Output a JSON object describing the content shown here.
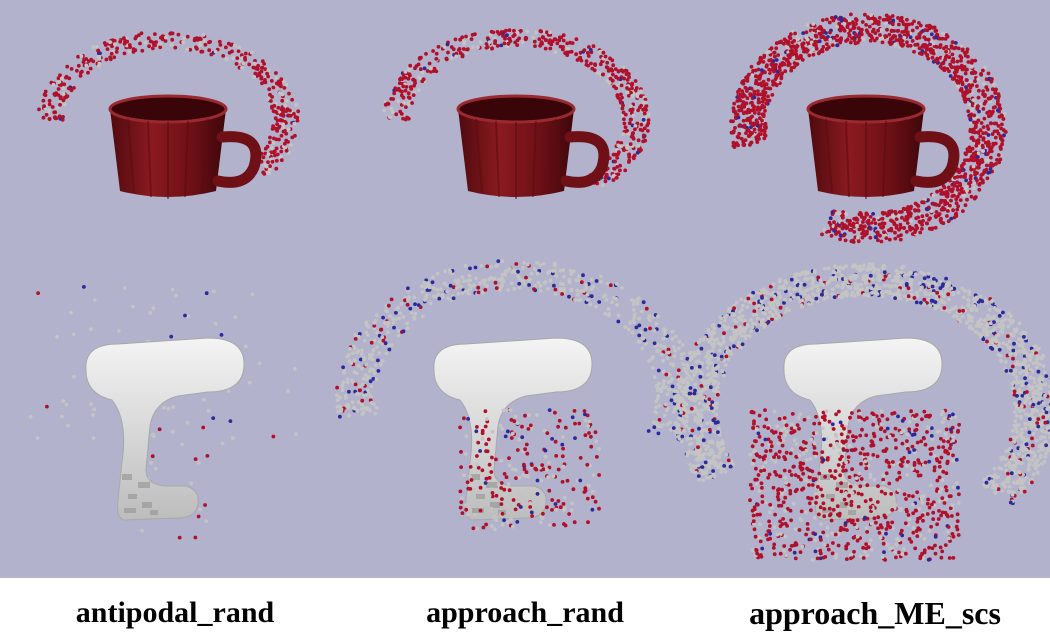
{
  "background_color": "#b2b2cc",
  "colors": {
    "red_points": "#b0102a",
    "gray_points": "#c4c4c4",
    "blue_points": "#2a2a9a",
    "mug": "#7a1218",
    "drill": "#e6e6e6"
  },
  "columns": [
    {
      "label": "antipodal_rand",
      "top_object": "mug",
      "bottom_object": "drill"
    },
    {
      "label": "approach_rand",
      "top_object": "mug",
      "bottom_object": "drill"
    },
    {
      "label": "approach_ME_scs",
      "top_object": "mug",
      "bottom_object": "drill"
    }
  ]
}
